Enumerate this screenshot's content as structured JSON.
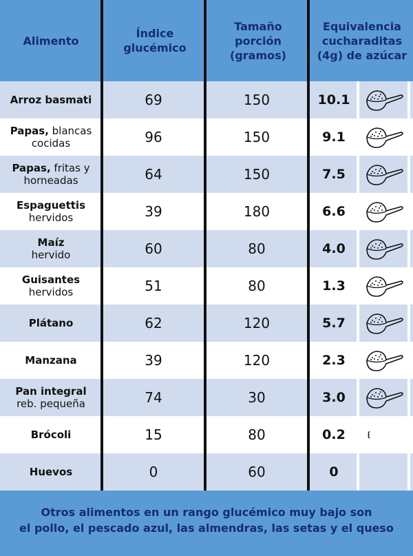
{
  "headers": [
    "Alimento",
    "Índice\nglucémico",
    "Tamaño\nporción\n(gramos)",
    "Equivalencia\ncucharaditas\n(4g) de azúcar"
  ],
  "rows": [
    {
      "bold": "Arroz basmati",
      "rest": "",
      "gi": "69",
      "portion": "150",
      "tsp": "10.1",
      "spoon": true
    },
    {
      "bold": "Papas,",
      "rest": " blancas cocidas",
      "gi": "96",
      "portion": "150",
      "tsp": "9.1",
      "spoon": true
    },
    {
      "bold": "Papas,",
      "rest": " fritas y horneadas",
      "gi": "64",
      "portion": "150",
      "tsp": "7.5",
      "spoon": true
    },
    {
      "bold": "Espaguettis",
      "rest": "hervidos",
      "gi": "39",
      "portion": "180",
      "tsp": "6.6",
      "spoon": true
    },
    {
      "bold": "Maíz",
      "rest": "hervido",
      "gi": "60",
      "portion": "80",
      "tsp": "4.0",
      "spoon": true
    },
    {
      "bold": "Guisantes",
      "rest": "hervidos",
      "gi": "51",
      "portion": "80",
      "tsp": "1.3",
      "spoon": true
    },
    {
      "bold": "Plátano",
      "rest": "",
      "gi": "62",
      "portion": "120",
      "tsp": "5.7",
      "spoon": true
    },
    {
      "bold": "Manzana",
      "rest": "",
      "gi": "39",
      "portion": "120",
      "tsp": "2.3",
      "spoon": true
    },
    {
      "bold": "Pan integral",
      "rest": "reb. pequeña",
      "gi": "74",
      "portion": "30",
      "tsp": "3.0",
      "spoon": true
    },
    {
      "bold": "Brócoli",
      "rest": "",
      "gi": "15",
      "portion": "80",
      "tsp": "0.2",
      "spoon": "partial"
    },
    {
      "bold": "Huevos",
      "rest": "",
      "gi": "0",
      "portion": "60",
      "tsp": "0",
      "spoon": false
    }
  ],
  "footer": "Otros alimentos en un rango glucémico  muy bajo son\nel pollo, el pescado azul, las almendras, las setas y el queso",
  "colors": {
    "header": "#5b9bd5",
    "header_text": "#142d6e",
    "alt_row": "#d0dcee"
  }
}
